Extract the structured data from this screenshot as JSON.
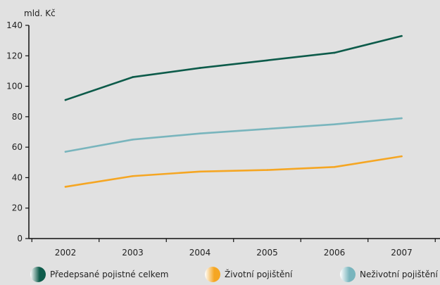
{
  "chart_data": {
    "type": "line",
    "title": "",
    "xlabel": "",
    "ylabel": "mld. Kč",
    "x": [
      "2002",
      "2003",
      "2004",
      "2005",
      "2006",
      "2007"
    ],
    "ylim": [
      0,
      140
    ],
    "yticks": [
      "0",
      "20",
      "40",
      "60",
      "80",
      "100",
      "120",
      "140"
    ],
    "grid": false,
    "legend_position": "bottom",
    "series": [
      {
        "name": "Předepsané pojistné celkem",
        "color": "#0d5b4a",
        "values": [
          91,
          106,
          112,
          117,
          122,
          133
        ]
      },
      {
        "name": "Životní pojištění",
        "color": "#f5a623",
        "values": [
          34,
          41,
          44,
          45,
          47,
          54
        ]
      },
      {
        "name": "Neživotní pojištění",
        "color": "#79b5bd",
        "values": [
          57,
          65,
          69,
          72,
          75,
          79
        ]
      }
    ]
  }
}
